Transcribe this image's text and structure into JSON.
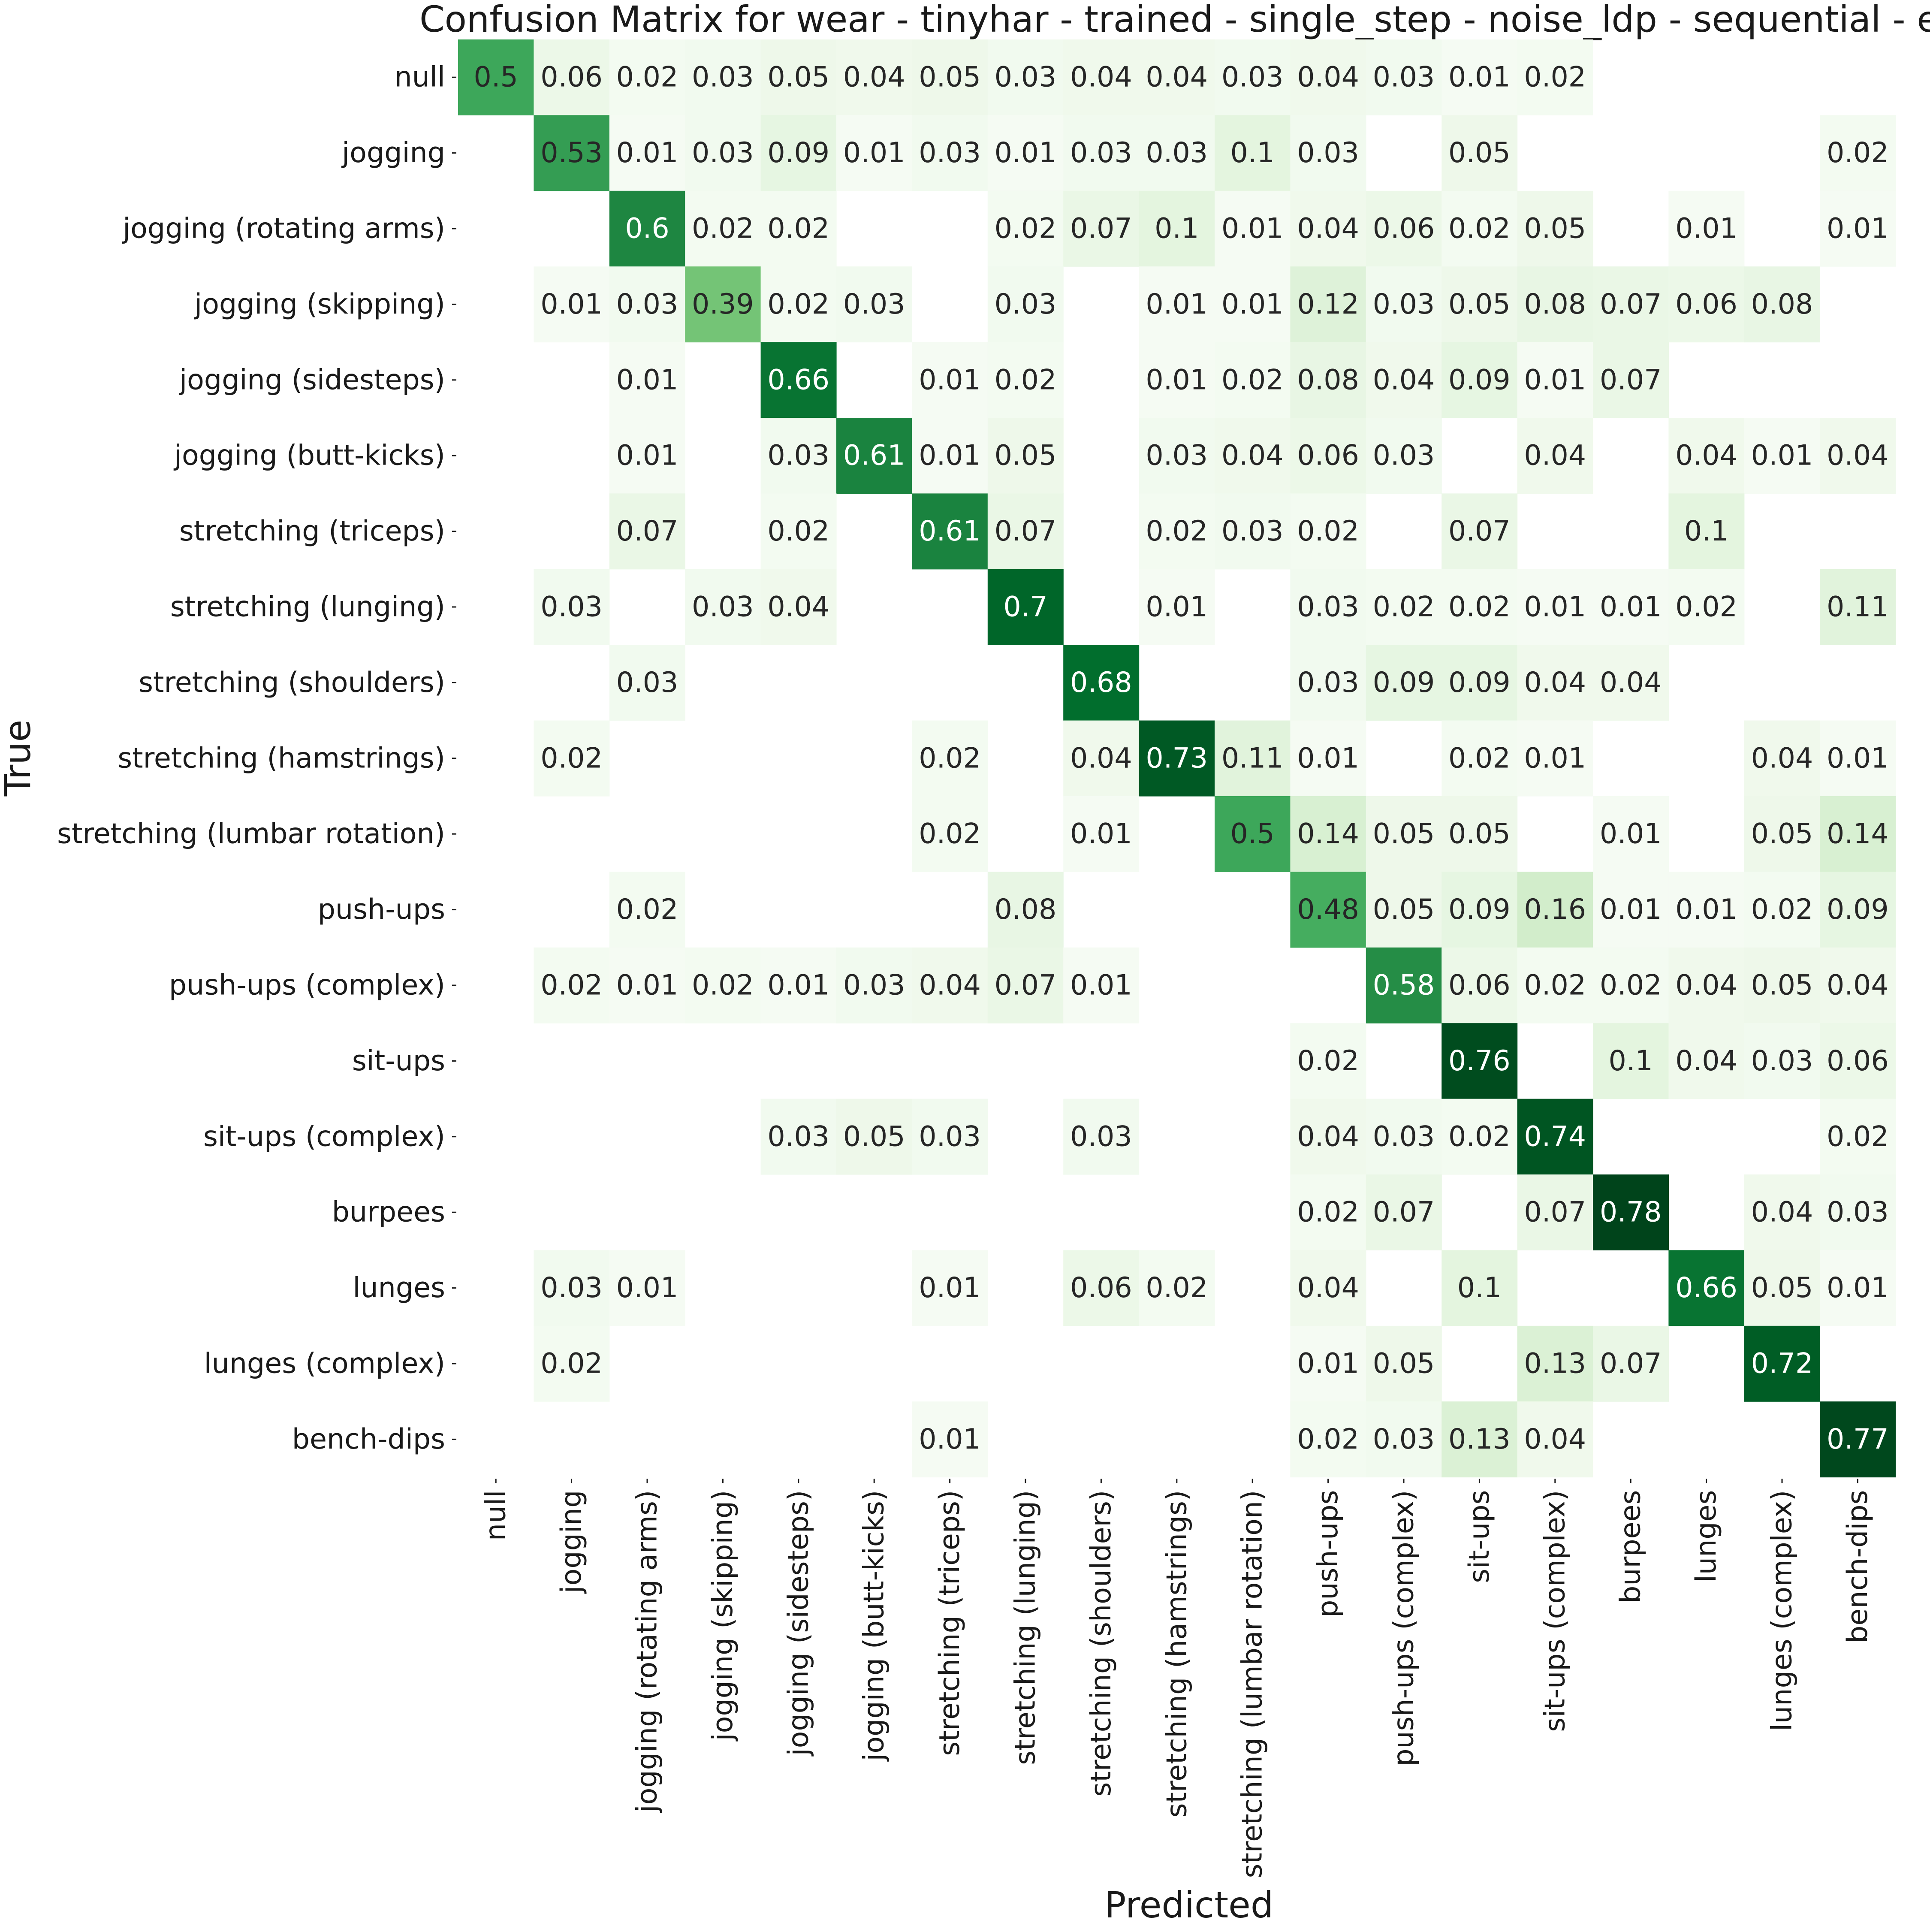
{
  "chart_data": {
    "type": "heatmap",
    "title": "Confusion Matrix for wear - tinyhar - trained - single_step - noise_ldp - sequential - e",
    "xlabel": "Predicted",
    "ylabel": "True",
    "labels": [
      "null",
      "jogging",
      "jogging (rotating arms)",
      "jogging (skipping)",
      "jogging (sidesteps)",
      "jogging (butt-kicks)",
      "stretching (triceps)",
      "stretching (lunging)",
      "stretching (shoulders)",
      "stretching (hamstrings)",
      "stretching (lumbar rotation)",
      "push-ups",
      "push-ups (complex)",
      "sit-ups",
      "sit-ups (complex)",
      "burpees",
      "lunges",
      "lunges (complex)",
      "bench-dips"
    ],
    "matrix": [
      [
        0.5,
        0.06,
        0.02,
        0.03,
        0.05,
        0.04,
        0.05,
        0.03,
        0.04,
        0.04,
        0.03,
        0.04,
        0.03,
        0.01,
        0.02,
        null,
        null,
        null,
        null
      ],
      [
        null,
        0.53,
        0.01,
        0.03,
        0.09,
        0.01,
        0.03,
        0.01,
        0.03,
        0.03,
        0.1,
        0.03,
        null,
        0.05,
        null,
        null,
        null,
        null,
        0.02
      ],
      [
        null,
        null,
        0.6,
        0.02,
        0.02,
        null,
        null,
        0.02,
        0.07,
        0.1,
        0.01,
        0.04,
        0.06,
        0.02,
        0.05,
        null,
        0.01,
        null,
        0.01
      ],
      [
        null,
        0.01,
        0.03,
        0.39,
        0.02,
        0.03,
        null,
        0.03,
        null,
        0.01,
        0.01,
        0.12,
        0.03,
        0.05,
        0.08,
        0.07,
        0.06,
        0.08,
        null
      ],
      [
        null,
        null,
        0.01,
        null,
        0.66,
        null,
        0.01,
        0.02,
        null,
        0.01,
        0.02,
        0.08,
        0.04,
        0.09,
        0.01,
        0.07,
        null,
        null,
        null
      ],
      [
        null,
        null,
        0.01,
        null,
        0.03,
        0.61,
        0.01,
        0.05,
        null,
        0.03,
        0.04,
        0.06,
        0.03,
        null,
        0.04,
        null,
        0.04,
        0.01,
        0.04
      ],
      [
        null,
        null,
        0.07,
        null,
        0.02,
        null,
        0.61,
        0.07,
        null,
        0.02,
        0.03,
        0.02,
        null,
        0.07,
        null,
        null,
        0.1,
        null,
        null
      ],
      [
        null,
        0.03,
        null,
        0.03,
        0.04,
        null,
        null,
        0.7,
        null,
        0.01,
        null,
        0.03,
        0.02,
        0.02,
        0.01,
        0.01,
        0.02,
        null,
        0.11
      ],
      [
        null,
        null,
        0.03,
        null,
        null,
        null,
        null,
        null,
        0.68,
        null,
        null,
        0.03,
        0.09,
        0.09,
        0.04,
        0.04,
        null,
        null,
        null
      ],
      [
        null,
        0.02,
        null,
        null,
        null,
        null,
        0.02,
        null,
        0.04,
        0.73,
        0.11,
        0.01,
        null,
        0.02,
        0.01,
        null,
        null,
        0.04,
        0.01
      ],
      [
        null,
        null,
        null,
        null,
        null,
        null,
        0.02,
        null,
        0.01,
        null,
        0.5,
        0.14,
        0.05,
        0.05,
        null,
        0.01,
        null,
        0.05,
        0.14
      ],
      [
        null,
        null,
        0.02,
        null,
        null,
        null,
        null,
        0.08,
        null,
        null,
        null,
        0.48,
        0.05,
        0.09,
        0.16,
        0.01,
        0.01,
        0.02,
        0.09
      ],
      [
        null,
        0.02,
        0.01,
        0.02,
        0.01,
        0.03,
        0.04,
        0.07,
        0.01,
        null,
        null,
        null,
        0.58,
        0.06,
        0.02,
        0.02,
        0.04,
        0.05,
        0.04
      ],
      [
        null,
        null,
        null,
        null,
        null,
        null,
        null,
        null,
        null,
        null,
        null,
        0.02,
        null,
        0.76,
        null,
        0.1,
        0.04,
        0.03,
        0.06
      ],
      [
        null,
        null,
        null,
        null,
        0.03,
        0.05,
        0.03,
        null,
        0.03,
        null,
        null,
        0.04,
        0.03,
        0.02,
        0.74,
        null,
        null,
        null,
        0.02
      ],
      [
        null,
        null,
        null,
        null,
        null,
        null,
        null,
        null,
        null,
        null,
        null,
        0.02,
        0.07,
        null,
        0.07,
        0.78,
        null,
        0.04,
        0.03
      ],
      [
        null,
        0.03,
        0.01,
        null,
        null,
        null,
        0.01,
        null,
        0.06,
        0.02,
        null,
        0.04,
        null,
        0.1,
        null,
        null,
        0.66,
        0.05,
        0.01
      ],
      [
        null,
        0.02,
        null,
        null,
        null,
        null,
        null,
        null,
        null,
        null,
        null,
        0.01,
        0.05,
        null,
        0.13,
        0.07,
        null,
        0.72,
        null
      ],
      [
        null,
        null,
        null,
        null,
        null,
        null,
        0.01,
        null,
        null,
        null,
        null,
        0.02,
        0.03,
        0.13,
        0.04,
        null,
        null,
        null,
        0.77
      ]
    ],
    "colormap": "Greens",
    "vmin": 0,
    "vmax": 0.78,
    "colorbar": false,
    "grid": false
  }
}
